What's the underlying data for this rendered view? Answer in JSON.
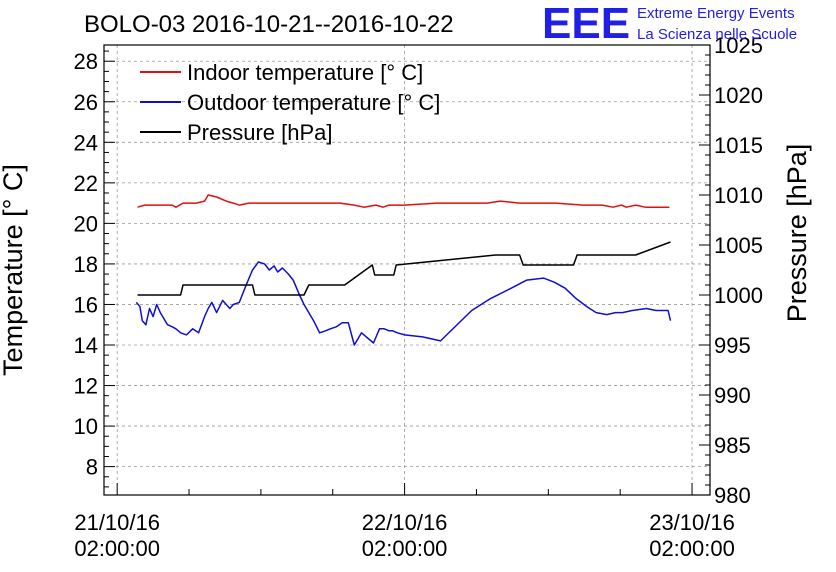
{
  "chart_data": {
    "type": "line",
    "title": "BOLO-03 2016-10-21--2016-10-22",
    "logo": {
      "text": "EEE",
      "line1": "Extreme Energy Events",
      "line2": "La Scienza nelle Scuole",
      "color": "#1f1fe6"
    },
    "y_left": {
      "label": "Temperature [° C]",
      "lim": [
        6.6,
        28.8
      ],
      "ticks": [
        8,
        10,
        12,
        14,
        16,
        18,
        20,
        22,
        24,
        26,
        28
      ]
    },
    "y_right": {
      "label": "Pressure [hPa]",
      "lim": [
        980,
        1025
      ],
      "ticks": [
        980,
        985,
        990,
        995,
        1000,
        1005,
        1010,
        1015,
        1020,
        1025
      ]
    },
    "x_axis": {
      "unit": "hours since 21/10/16 02:00:00",
      "lim": [
        -1.1,
        49.5
      ],
      "ticks": [
        {
          "x": 0,
          "date": "21/10/16",
          "time": "02:00:00"
        },
        {
          "x": 24,
          "date": "22/10/16",
          "time": "02:00:00"
        },
        {
          "x": 48,
          "date": "23/10/16",
          "time": "02:00:00"
        }
      ]
    },
    "grid": true,
    "legend": "top-left",
    "series": [
      {
        "name": "Indoor temperature [° C]",
        "color": "#e01010",
        "axis": "left",
        "x": [
          1.7,
          2.3,
          4.6,
          4.9,
          5.5,
          6.6,
          7.3,
          7.6,
          8.3,
          9.1,
          9.7,
          10.2,
          11.0,
          12.5,
          15.3,
          18.6,
          19.8,
          20.6,
          21.6,
          22.2,
          22.7,
          24.0,
          26.7,
          30.9,
          32.0,
          33.6,
          36.6,
          38.9,
          40.5,
          41.4,
          42.1,
          42.5,
          43.3,
          44.1,
          46.1
        ],
        "y": [
          20.8,
          20.9,
          20.9,
          20.8,
          21.0,
          21.0,
          21.1,
          21.4,
          21.3,
          21.1,
          21.0,
          20.9,
          21.0,
          21.0,
          21.0,
          21.0,
          20.9,
          20.8,
          20.9,
          20.8,
          20.9,
          20.9,
          21.0,
          21.0,
          21.1,
          21.0,
          21.0,
          20.9,
          20.9,
          20.8,
          20.9,
          20.8,
          20.9,
          20.8,
          20.8
        ]
      },
      {
        "name": "Outdoor temperature [° C]",
        "color": "#1010cc",
        "axis": "left",
        "x": [
          1.6,
          1.9,
          2.1,
          2.4,
          2.7,
          3.0,
          3.3,
          3.6,
          3.9,
          4.2,
          4.6,
          4.9,
          5.3,
          5.8,
          6.3,
          6.8,
          7.3,
          7.6,
          7.9,
          8.3,
          8.8,
          9.4,
          9.7,
          10.2,
          10.8,
          11.3,
          11.8,
          12.3,
          12.7,
          13.1,
          13.4,
          13.8,
          14.3,
          14.7,
          15.2,
          15.6,
          16.0,
          16.4,
          16.9,
          17.4,
          17.8,
          18.3,
          18.8,
          19.3,
          19.8,
          20.4,
          21.4,
          21.9,
          22.3,
          22.7,
          23.0,
          23.4,
          24.0,
          25.5,
          27.0,
          29.6,
          31.2,
          32.9,
          34.2,
          35.6,
          36.5,
          37.4,
          38.3,
          39.2,
          40.0,
          40.9,
          41.6,
          42.2,
          43.0,
          44.2,
          45.0,
          46.0,
          46.2
        ],
        "y": [
          16.1,
          15.9,
          15.2,
          15.0,
          15.8,
          15.4,
          16.0,
          15.6,
          15.3,
          15.0,
          14.9,
          14.8,
          14.6,
          14.5,
          14.8,
          14.6,
          15.4,
          15.8,
          16.1,
          15.6,
          16.2,
          15.8,
          16.0,
          16.1,
          17.0,
          17.7,
          18.1,
          18.0,
          17.7,
          17.9,
          17.6,
          17.8,
          17.5,
          17.2,
          16.5,
          16.0,
          15.6,
          15.2,
          14.6,
          14.7,
          14.8,
          14.9,
          15.1,
          15.1,
          14.0,
          14.6,
          14.1,
          14.8,
          14.8,
          14.7,
          14.7,
          14.6,
          14.5,
          14.4,
          14.2,
          15.7,
          16.3,
          16.8,
          17.2,
          17.3,
          17.1,
          16.8,
          16.3,
          15.9,
          15.6,
          15.5,
          15.6,
          15.6,
          15.7,
          15.8,
          15.7,
          15.7,
          15.2
        ]
      },
      {
        "name": "Pressure [hPa]",
        "color": "#000000",
        "axis": "right",
        "x": [
          1.7,
          5.3,
          5.5,
          11.3,
          11.5,
          15.6,
          16.0,
          19.0,
          21.3,
          21.5,
          23.1,
          23.3,
          31.6,
          33.6,
          33.9,
          38.1,
          38.4,
          42.3,
          43.3,
          46.2
        ],
        "y": [
          1000,
          1000,
          1001,
          1001,
          1000,
          1000,
          1001,
          1001,
          1003,
          1002,
          1002,
          1003,
          1004,
          1004,
          1003,
          1003,
          1004,
          1004,
          1004,
          1005.3
        ]
      }
    ]
  }
}
